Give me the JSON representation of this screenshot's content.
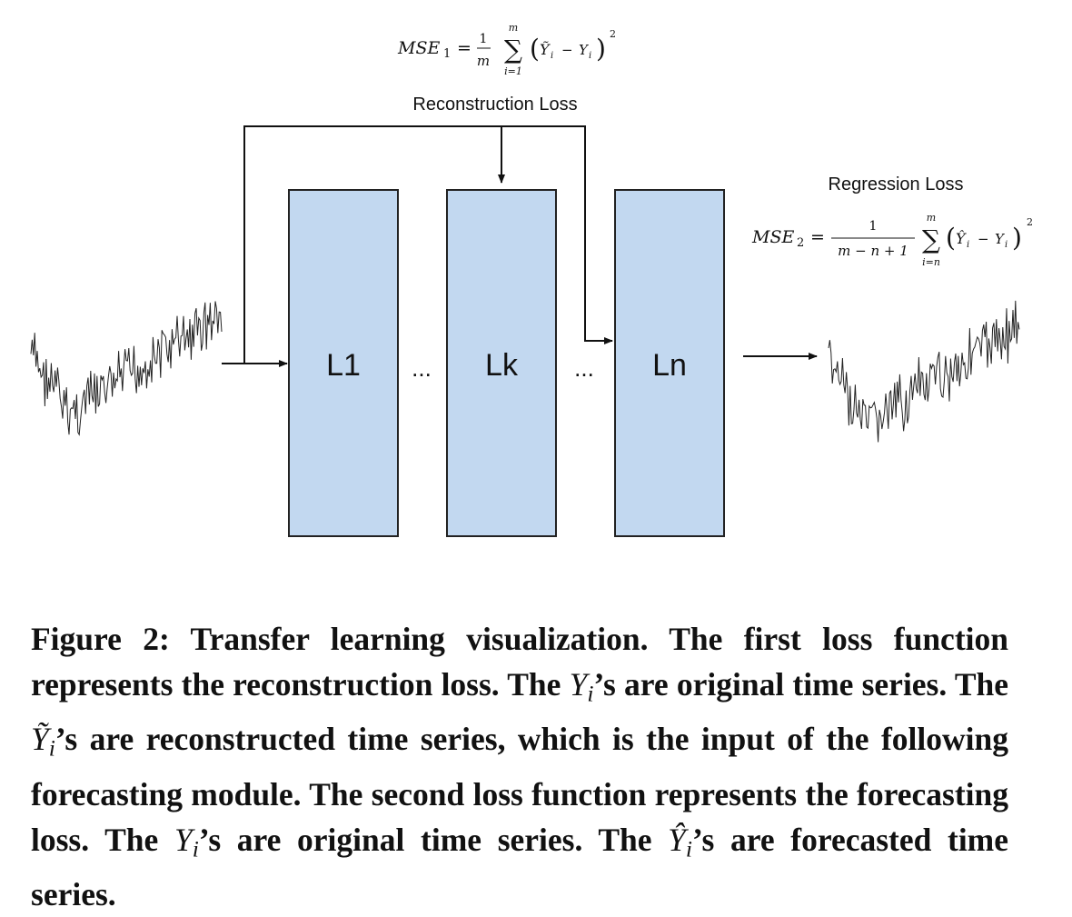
{
  "diagram": {
    "reconstruction_loss_label": "Reconstruction Loss",
    "regression_loss_label": "Regression Loss",
    "layers": [
      "L1",
      "Lk",
      "Ln"
    ],
    "ellipsis": "...",
    "colors": {
      "layer_fill": "#c2d8f0",
      "layer_stroke": "#222222",
      "line": "#111111"
    },
    "mse1": {
      "lhs_main": "MSE",
      "lhs_sub": "1",
      "equals": "=",
      "frac_num": "1",
      "frac_den": "m",
      "sum_top": "m",
      "sum_symbol": "∑",
      "sum_bottom": "i=1",
      "open_paren": "(",
      "ytilde": "Ỹ",
      "idx1": "i",
      "minus": "−",
      "y": "Y",
      "idx2": "i",
      "close_paren": ")",
      "power": "2"
    },
    "mse2": {
      "lhs_main": "MSE",
      "lhs_sub": "2",
      "equals": "=",
      "frac_num": "1",
      "frac_den": "m − n + 1",
      "sum_top": "m",
      "sum_symbol": "∑",
      "sum_bottom": "i=n",
      "open_paren": "(",
      "yhat": "Ŷ",
      "idx1": "i",
      "minus": "−",
      "y": "Y",
      "idx2": "i",
      "close_paren": ")",
      "power": "2"
    }
  },
  "caption": {
    "part1": "Figure 2: Transfer learning visualization. The first loss function represents the reconstruction loss. The ",
    "var1": "Y",
    "sub1": "i",
    "part2": "’s are original time series. The ",
    "var2": "Ỹ",
    "sub2": "i",
    "part3": "’s are reconstructed time series, which is the input of the following forecasting module. The second loss function represents the forecasting loss. The ",
    "var3": "Y",
    "sub3": "i",
    "part4": "’s are original time series. The ",
    "var4": "Ŷ",
    "sub4": "i",
    "part5": "’s are forecasted time series."
  }
}
